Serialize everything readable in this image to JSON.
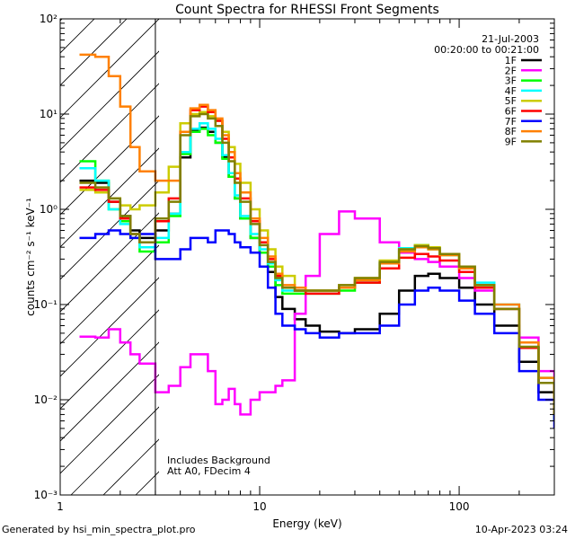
{
  "chart_data": {
    "type": "line",
    "title": "Count Spectra for RHESSI Front Segments",
    "xlabel": "Energy (keV)",
    "ylabel": "counts cm⁻² s⁻¹ keV⁻¹",
    "xscale": "log",
    "yscale": "log",
    "xlim": [
      1,
      300
    ],
    "ylim": [
      0.001,
      100
    ],
    "x_ticks": [
      {
        "value": 1,
        "label": "1"
      },
      {
        "value": 10,
        "label": "10"
      },
      {
        "value": 100,
        "label": "100"
      }
    ],
    "y_ticks": [
      {
        "value": 0.001,
        "label": "10⁻³"
      },
      {
        "value": 0.01,
        "label": "10⁻²"
      },
      {
        "value": 0.1,
        "label": "10⁻¹"
      },
      {
        "value": 1,
        "label": "10⁰"
      },
      {
        "value": 10,
        "label": "10¹"
      },
      {
        "value": 100,
        "label": "10²"
      }
    ],
    "shaded_region": {
      "x_from": 1,
      "x_to": 3,
      "style": "diagonal-hatch"
    },
    "date": "21-Jul-2003",
    "time_range": "00:20:00 to 00:21:00",
    "annotations": [
      "Includes Background",
      "Att A0, FDecim 4"
    ],
    "energy": [
      1.25,
      1.5,
      1.75,
      2.0,
      2.25,
      2.5,
      2.75,
      3.0,
      3.5,
      4.0,
      4.5,
      5.0,
      5.5,
      6.0,
      6.5,
      7.0,
      7.5,
      8.0,
      9.0,
      10.0,
      11.0,
      12.0,
      13.0,
      15.0,
      17.0,
      20.0,
      25.0,
      30.0,
      40.0,
      50.0,
      60.0,
      70.0,
      80.0,
      100.0,
      120.0,
      150.0,
      200.0,
      250.0,
      300.0
    ],
    "series": [
      {
        "name": "1F",
        "color": "#000000",
        "values": [
          2.0,
          1.9,
          1.2,
          0.85,
          0.6,
          0.5,
          0.5,
          0.6,
          0.9,
          3.5,
          6.8,
          7.2,
          6.5,
          5.0,
          3.5,
          2.2,
          1.3,
          0.8,
          0.5,
          0.35,
          0.22,
          0.12,
          0.09,
          0.07,
          0.06,
          0.052,
          0.05,
          0.055,
          0.08,
          0.14,
          0.2,
          0.21,
          0.19,
          0.15,
          0.1,
          0.06,
          0.025,
          0.012,
          0.006
        ]
      },
      {
        "name": "2F",
        "color": "#ff00ff",
        "values": [
          0.046,
          0.045,
          0.055,
          0.04,
          0.03,
          0.024,
          0.024,
          0.012,
          0.014,
          0.022,
          0.03,
          0.03,
          0.02,
          0.009,
          0.01,
          0.013,
          0.009,
          0.007,
          0.01,
          0.012,
          0.012,
          0.014,
          0.016,
          0.08,
          0.2,
          0.55,
          0.95,
          0.8,
          0.45,
          0.35,
          0.3,
          0.28,
          0.25,
          0.19,
          0.14,
          0.09,
          0.045,
          0.02,
          0.014
        ]
      },
      {
        "name": "3F",
        "color": "#00ff00",
        "values": [
          3.2,
          2.0,
          1.0,
          0.75,
          0.5,
          0.36,
          0.36,
          0.45,
          0.85,
          3.8,
          6.5,
          7.0,
          6.0,
          5.0,
          3.4,
          2.2,
          1.3,
          0.8,
          0.5,
          0.35,
          0.25,
          0.16,
          0.13,
          0.13,
          0.13,
          0.13,
          0.14,
          0.17,
          0.27,
          0.38,
          0.42,
          0.38,
          0.33,
          0.24,
          0.16,
          0.09,
          0.035,
          0.015,
          0.006
        ]
      },
      {
        "name": "4F",
        "color": "#00ffff",
        "values": [
          2.7,
          2.0,
          1.0,
          0.7,
          0.55,
          0.4,
          0.4,
          0.5,
          0.9,
          4.0,
          7.0,
          8.0,
          7.0,
          5.5,
          3.7,
          2.4,
          1.4,
          0.85,
          0.55,
          0.38,
          0.27,
          0.18,
          0.14,
          0.14,
          0.14,
          0.14,
          0.15,
          0.18,
          0.28,
          0.39,
          0.42,
          0.39,
          0.34,
          0.25,
          0.17,
          0.1,
          0.04,
          0.017,
          0.007
        ]
      },
      {
        "name": "5F",
        "color": "#cccc00",
        "values": [
          1.6,
          1.5,
          1.3,
          1.1,
          1.0,
          1.1,
          1.1,
          1.5,
          2.8,
          8.0,
          10.0,
          10.5,
          9.5,
          8.5,
          6.5,
          4.5,
          3.0,
          1.9,
          1.0,
          0.6,
          0.38,
          0.25,
          0.2,
          0.15,
          0.14,
          0.14,
          0.16,
          0.19,
          0.29,
          0.38,
          0.42,
          0.4,
          0.34,
          0.25,
          0.16,
          0.09,
          0.035,
          0.015,
          0.007
        ]
      },
      {
        "name": "6F",
        "color": "#ff0000",
        "values": [
          1.7,
          1.6,
          1.2,
          0.8,
          0.55,
          0.45,
          0.45,
          0.75,
          1.3,
          6.5,
          11.0,
          12.0,
          10.5,
          8.5,
          5.5,
          3.5,
          2.1,
          1.3,
          0.75,
          0.45,
          0.3,
          0.2,
          0.15,
          0.14,
          0.13,
          0.13,
          0.15,
          0.17,
          0.24,
          0.31,
          0.34,
          0.32,
          0.29,
          0.22,
          0.15,
          0.09,
          0.035,
          0.015,
          0.007
        ]
      },
      {
        "name": "7F",
        "color": "#0000ff",
        "values": [
          0.5,
          0.55,
          0.6,
          0.55,
          0.5,
          0.55,
          0.55,
          0.3,
          0.3,
          0.38,
          0.5,
          0.5,
          0.45,
          0.6,
          0.6,
          0.55,
          0.45,
          0.4,
          0.35,
          0.25,
          0.15,
          0.08,
          0.06,
          0.055,
          0.05,
          0.045,
          0.05,
          0.05,
          0.06,
          0.1,
          0.14,
          0.15,
          0.14,
          0.11,
          0.08,
          0.05,
          0.02,
          0.01,
          0.005
        ]
      },
      {
        "name": "8F",
        "color": "#ff8000",
        "values": [
          42,
          40,
          25,
          12,
          4.5,
          2.5,
          2.5,
          2.0,
          2.0,
          6.5,
          11.5,
          12.5,
          11.0,
          9.0,
          6.0,
          4.0,
          2.4,
          1.5,
          0.8,
          0.5,
          0.32,
          0.21,
          0.16,
          0.15,
          0.14,
          0.14,
          0.15,
          0.18,
          0.27,
          0.36,
          0.4,
          0.38,
          0.33,
          0.24,
          0.16,
          0.1,
          0.04,
          0.017,
          0.007
        ]
      },
      {
        "name": "9F",
        "color": "#808000",
        "values": [
          1.9,
          1.7,
          1.3,
          0.85,
          0.55,
          0.45,
          0.45,
          0.8,
          1.2,
          6.0,
          9.5,
          10.0,
          9.0,
          7.5,
          5.0,
          3.2,
          1.9,
          1.2,
          0.7,
          0.42,
          0.28,
          0.19,
          0.15,
          0.14,
          0.14,
          0.14,
          0.16,
          0.19,
          0.28,
          0.38,
          0.41,
          0.39,
          0.34,
          0.25,
          0.16,
          0.09,
          0.036,
          0.015,
          0.007
        ]
      }
    ]
  },
  "footer": {
    "left": "Generated by hsi_min_spectra_plot.pro",
    "right": "10-Apr-2023 03:24"
  }
}
